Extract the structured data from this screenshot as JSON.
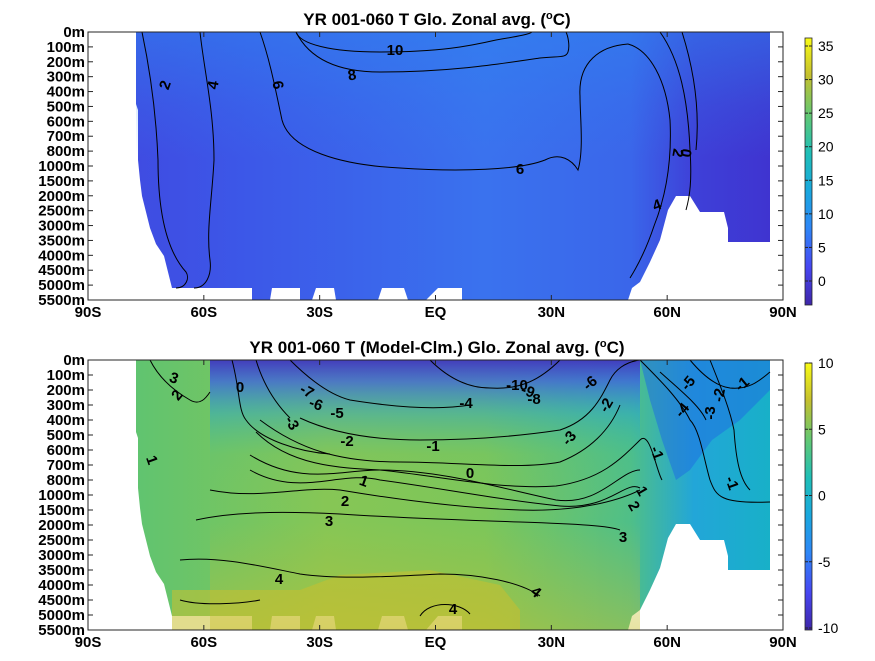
{
  "chart_data": [
    {
      "type": "heatmap",
      "title": "YR 001-060 T Glo. Zonal avg. (",
      "title_sup": "o",
      "title_tail": "C)",
      "x_ticks": [
        "90S",
        "60S",
        "30S",
        "EQ",
        "30N",
        "60N",
        "90N"
      ],
      "y_ticks": [
        "0m",
        "100m",
        "200m",
        "300m",
        "400m",
        "500m",
        "600m",
        "700m",
        "800m",
        "1000m",
        "1500m",
        "2000m",
        "2500m",
        "3000m",
        "3500m",
        "4000m",
        "4500m",
        "5000m",
        "5500m"
      ],
      "colorbar": {
        "ticks": [
          "35",
          "30",
          "25",
          "20",
          "15",
          "10",
          "5",
          "0"
        ],
        "range": [
          -3.5,
          36
        ],
        "colormap": "parula"
      },
      "contour_labels": [
        "10",
        "8",
        "2",
        "4",
        "6",
        "6",
        "0",
        "2",
        "4"
      ],
      "colors": {
        "base": "#3860ea",
        "cold_south": "#3d4de0",
        "cold_north": "#3f35d4",
        "warm_core": "#3a8fea"
      }
    },
    {
      "type": "heatmap",
      "title": "YR 001-060 T (Model-Clm.) Glo. Zonal avg. (",
      "title_sup": "o",
      "title_tail": "C)",
      "x_ticks": [
        "90S",
        "60S",
        "30S",
        "EQ",
        "30N",
        "60N",
        "90N"
      ],
      "y_ticks": [
        "0m",
        "100m",
        "200m",
        "300m",
        "400m",
        "500m",
        "600m",
        "700m",
        "800m",
        "1000m",
        "1500m",
        "2000m",
        "2500m",
        "3000m",
        "3500m",
        "4000m",
        "4500m",
        "5000m",
        "5500m"
      ],
      "colorbar": {
        "ticks": [
          "10",
          "5",
          "0",
          "-5",
          "-10"
        ],
        "range": [
          -10,
          10
        ],
        "colormap": "parula"
      },
      "contour_labels": [
        "3",
        "2",
        "1",
        "0",
        "-3",
        "-7",
        "-6",
        "-5",
        "-10",
        "-9",
        "-8",
        "-6",
        "-4",
        "-2",
        "-1",
        "-3",
        "-2",
        "-5",
        "-4",
        "-3",
        "-2",
        "-1",
        "-1",
        "-1",
        "1",
        "0",
        "2",
        "3",
        "1",
        "2",
        "3",
        "4",
        "4",
        "4"
      ],
      "colors": {
        "deep": "#1f5fe3",
        "cold": "#3a30c0",
        "neutral": "#2ab0b5",
        "warm": "#8ec84e",
        "hot": "#c8c030"
      }
    }
  ]
}
